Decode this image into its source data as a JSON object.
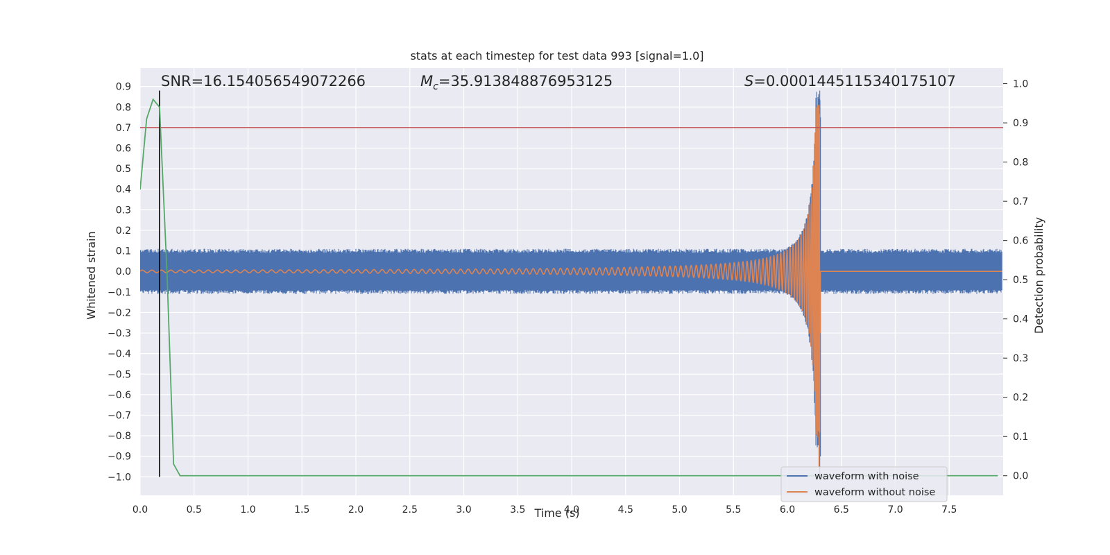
{
  "chart_data": {
    "type": "line",
    "title": "stats at each timestep for test data 993 [signal=1.0]",
    "xlabel": "Time (s)",
    "ylabel": "Whitened strain",
    "y2label": "Detection probability",
    "xlim": [
      0,
      8
    ],
    "ylim": [
      -1.09,
      0.99
    ],
    "y2lim": [
      -0.05,
      1.04
    ],
    "grid": true,
    "legend_position": "bottom-right",
    "x_ticks": [
      0.0,
      0.5,
      1.0,
      1.5,
      2.0,
      2.5,
      3.0,
      3.5,
      4.0,
      4.5,
      5.0,
      5.5,
      6.0,
      6.5,
      7.0,
      7.5
    ],
    "x_tick_labels": [
      "0.0",
      "0.5",
      "1.0",
      "1.5",
      "2.0",
      "2.5",
      "3.0",
      "3.5",
      "4.0",
      "4.5",
      "5.0",
      "5.5",
      "6.0",
      "6.5",
      "7.0",
      "7.5"
    ],
    "y_ticks": [
      0.9,
      0.8,
      0.7,
      0.6,
      0.5,
      0.4,
      0.3,
      0.2,
      0.1,
      0.0,
      -0.1,
      -0.2,
      -0.3,
      -0.4,
      -0.5,
      -0.6,
      -0.7,
      -0.8,
      -0.9,
      -1.0
    ],
    "y_tick_labels": [
      "0.9",
      "0.8",
      "0.7",
      "0.6",
      "0.5",
      "0.4",
      "0.3",
      "0.2",
      "0.1",
      "0.0",
      "−0.1",
      "−0.2",
      "−0.3",
      "−0.4",
      "−0.5",
      "−0.6",
      "−0.7",
      "−0.8",
      "−0.9",
      "−1.0"
    ],
    "y2_ticks": [
      1.0,
      0.9,
      0.8,
      0.7,
      0.6,
      0.5,
      0.4,
      0.3,
      0.2,
      0.1,
      0.0
    ],
    "y2_tick_labels": [
      "1.0",
      "0.9",
      "0.8",
      "0.7",
      "0.6",
      "0.5",
      "0.4",
      "0.3",
      "0.2",
      "0.1",
      "0.0"
    ],
    "annotations": {
      "snr": "SNR=16.154056549072266",
      "mc_symbol": "M",
      "mc_subscript": "c",
      "mc_value": "=35.913848876953125",
      "s_symbol": "S",
      "s_value": "=0.0001445115340175107"
    },
    "series": [
      {
        "name": "waveform with noise",
        "color": "#4c72b0",
        "axis": "left",
        "noise_amplitude": 0.11,
        "merger_time": 6.3,
        "peak_amplitude": 0.88,
        "min_amplitude": -1.0
      },
      {
        "name": "waveform without noise",
        "color": "#dd8452",
        "axis": "left",
        "merger_time": 6.3,
        "peak_amplitude": 0.81,
        "min_amplitude": -0.95
      },
      {
        "color": "#55a868",
        "axis": "right",
        "x": [
          0.0,
          0.06,
          0.12,
          0.18,
          0.25,
          0.31,
          0.37,
          0.45,
          7.95
        ],
        "values": [
          0.73,
          0.91,
          0.96,
          0.94,
          0.51,
          0.03,
          0.0,
          0.0,
          0.0
        ]
      }
    ],
    "threshold_line": {
      "value": 0.7,
      "axis": "left",
      "color": "#c44e52"
    },
    "marker_line": {
      "x": 0.18,
      "y_from": -1.0,
      "y_to": 0.88,
      "axis": "left",
      "color": "#000000"
    }
  }
}
